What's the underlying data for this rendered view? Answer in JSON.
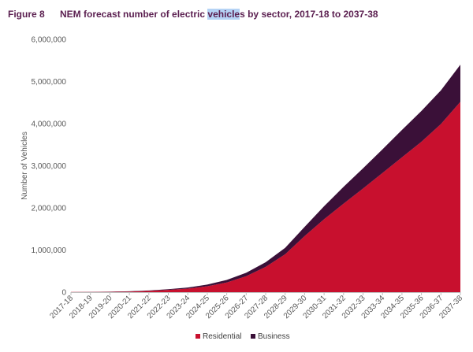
{
  "header": {
    "figure_label": "Figure 8",
    "title_part1": "NEM forecast number of electric ",
    "title_highlight": "vehicle",
    "title_part2": "s by sector, 2017-18 to 2037-38"
  },
  "chart_data": {
    "type": "area",
    "stacked": true,
    "title": "NEM forecast number of electric vehicles by sector, 2017-18 to 2037-38",
    "xlabel": "",
    "ylabel": "Number of Vehicles",
    "ylim": [
      0,
      6000000
    ],
    "y_ticks": [
      0,
      1000000,
      2000000,
      3000000,
      4000000,
      5000000,
      6000000
    ],
    "y_tick_labels": [
      "0",
      "1,000,000",
      "2,000,000",
      "3,000,000",
      "4,000,000",
      "5,000,000",
      "6,000,000"
    ],
    "grid": false,
    "legend_position": "bottom",
    "categories": [
      "2017-18",
      "2018-19",
      "2019-20",
      "2020-21",
      "2021-22",
      "2022-23",
      "2023-24",
      "2024-25",
      "2025-26",
      "2026-27",
      "2027-28",
      "2028-29",
      "2029-30",
      "2030-31",
      "2031-32",
      "2032-33",
      "2033-34",
      "2034-35",
      "2035-36",
      "2036-37",
      "2037-38"
    ],
    "series": [
      {
        "name": "Residential",
        "color": "#c8102e",
        "values": [
          3000,
          5000,
          8000,
          15000,
          30000,
          55000,
          85000,
          140000,
          230000,
          380000,
          600000,
          900000,
          1330000,
          1730000,
          2100000,
          2460000,
          2830000,
          3200000,
          3570000,
          3990000,
          4520000
        ]
      },
      {
        "name": "Business",
        "color": "#3a1038",
        "values": [
          1000,
          2000,
          3000,
          5000,
          10000,
          15000,
          25000,
          40000,
          60000,
          80000,
          110000,
          150000,
          220000,
          310000,
          400000,
          480000,
          560000,
          650000,
          730000,
          800000,
          880000
        ]
      }
    ]
  }
}
